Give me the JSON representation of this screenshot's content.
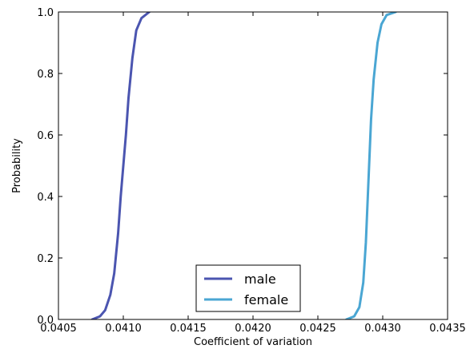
{
  "chart_data": {
    "type": "line",
    "title": "",
    "xlabel": "Coefficient of variation",
    "ylabel": "Probability",
    "xlim": [
      0.0405,
      0.0435
    ],
    "ylim": [
      0.0,
      1.0
    ],
    "x_ticks": [
      0.0405,
      0.041,
      0.0415,
      0.042,
      0.0425,
      0.043,
      0.0435
    ],
    "x_tick_labels": [
      "0.0405",
      "0.0410",
      "0.0415",
      "0.0420",
      "0.0425",
      "0.0430",
      "0.0435"
    ],
    "y_ticks": [
      0.0,
      0.2,
      0.4,
      0.6,
      0.8,
      1.0
    ],
    "y_tick_labels": [
      "0.0",
      "0.2",
      "0.4",
      "0.6",
      "0.8",
      "1.0"
    ],
    "grid": false,
    "legend_position": "bottom-center",
    "series": [
      {
        "name": "male",
        "color": "#4b55b0",
        "x": [
          0.04076,
          0.04082,
          0.04086,
          0.0409,
          0.04093,
          0.04096,
          0.04098,
          0.041,
          0.04102,
          0.04104,
          0.04107,
          0.0411,
          0.04114,
          0.0412
        ],
        "y": [
          0.0,
          0.01,
          0.03,
          0.08,
          0.15,
          0.28,
          0.4,
          0.5,
          0.6,
          0.72,
          0.85,
          0.94,
          0.98,
          1.0
        ]
      },
      {
        "name": "female",
        "color": "#4aa6d3",
        "x": [
          0.04272,
          0.04278,
          0.04282,
          0.04285,
          0.04287,
          0.04288,
          0.04289,
          0.0429,
          0.04291,
          0.04293,
          0.04296,
          0.04299,
          0.04303,
          0.0431
        ],
        "y": [
          0.0,
          0.01,
          0.04,
          0.12,
          0.25,
          0.35,
          0.45,
          0.55,
          0.65,
          0.78,
          0.9,
          0.96,
          0.99,
          1.0
        ]
      }
    ]
  }
}
